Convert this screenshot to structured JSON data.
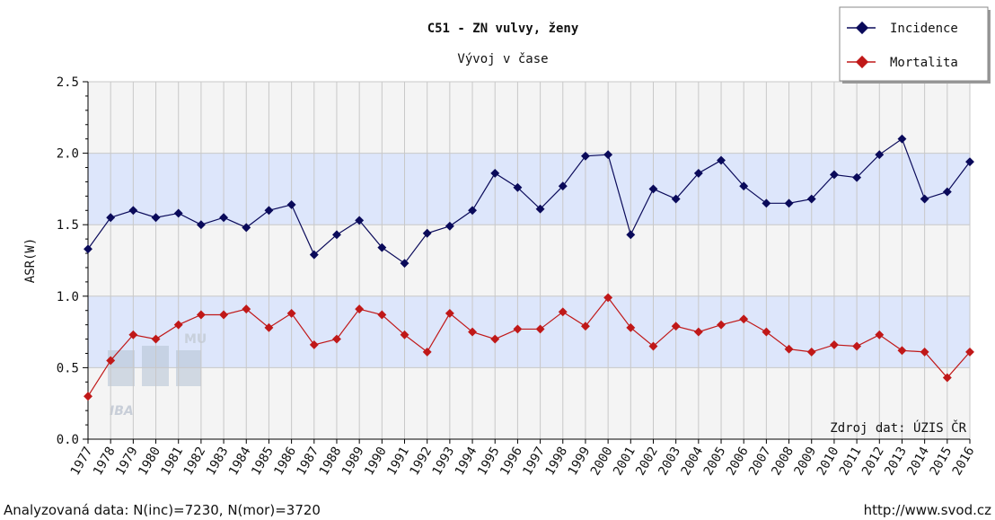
{
  "chart_data": {
    "type": "line",
    "title": "C51 - ZN vulvy, ženy",
    "subtitle": "Vývoj v čase",
    "y_label": "ASR(W)",
    "annotation": "Zdroj dat: ÚZIS ČR",
    "logo": {
      "top": "MU",
      "main": "IBA"
    },
    "footer_left": "Analyzovaná data: N(inc)=7230, N(mor)=3720",
    "footer_right": "http://www.svod.cz",
    "categories": [
      "1977",
      "1978",
      "1979",
      "1980",
      "1981",
      "1982",
      "1983",
      "1984",
      "1985",
      "1986",
      "1987",
      "1988",
      "1989",
      "1990",
      "1991",
      "1992",
      "1993",
      "1994",
      "1995",
      "1996",
      "1997",
      "1998",
      "1999",
      "2000",
      "2001",
      "2002",
      "2003",
      "2004",
      "2005",
      "2006",
      "2007",
      "2008",
      "2009",
      "2010",
      "2011",
      "2012",
      "2013",
      "2014",
      "2015",
      "2016"
    ],
    "series": [
      {
        "name": "Incidence",
        "color": "#0a0a5a",
        "values": [
          1.33,
          1.55,
          1.6,
          1.55,
          1.58,
          1.5,
          1.55,
          1.48,
          1.6,
          1.64,
          1.29,
          1.43,
          1.53,
          1.34,
          1.23,
          1.44,
          1.49,
          1.6,
          1.86,
          1.76,
          1.61,
          1.77,
          1.98,
          1.99,
          1.43,
          1.75,
          1.68,
          1.86,
          1.95,
          1.77,
          1.65,
          1.65,
          1.68,
          1.85,
          1.83,
          1.99,
          2.1,
          1.68,
          1.73,
          1.94
        ]
      },
      {
        "name": "Mortalita",
        "color": "#c01818",
        "values": [
          0.3,
          0.55,
          0.73,
          0.7,
          0.8,
          0.87,
          0.87,
          0.91,
          0.78,
          0.88,
          0.66,
          0.7,
          0.91,
          0.87,
          0.73,
          0.61,
          0.88,
          0.75,
          0.7,
          0.77,
          0.77,
          0.89,
          0.79,
          0.99,
          0.78,
          0.65,
          0.79,
          0.75,
          0.8,
          0.84,
          0.75,
          0.63,
          0.61,
          0.66,
          0.65,
          0.73,
          0.62,
          0.61,
          0.43,
          0.61
        ]
      }
    ],
    "ylim": [
      0,
      2.5
    ],
    "yticks": [
      {
        "value": 0,
        "label": "0.0"
      },
      0.5,
      {
        "value": 1,
        "label": "1.0"
      },
      1.5,
      {
        "value": 2,
        "label": "2.0"
      },
      2.5
    ],
    "grid": true,
    "legend": "top-right"
  }
}
